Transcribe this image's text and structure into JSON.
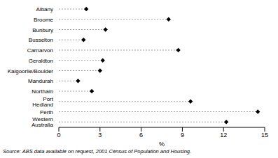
{
  "chart_data": {
    "type": "dot",
    "orientation": "horizontal",
    "categories": [
      "Albany",
      "Broome",
      "Bunbury",
      "Busselton",
      "Carnarvon",
      "Geraldton",
      "Kalgoorlie/Boulder",
      "Mandurah",
      "Northam",
      "Port Hedland",
      "Perth",
      "Western Australia"
    ],
    "values": [
      2.0,
      8.0,
      3.4,
      1.8,
      8.7,
      3.2,
      3.0,
      1.4,
      2.4,
      9.6,
      14.5,
      12.2
    ],
    "color": "#000000",
    "marker": "diamond",
    "line_style": "dashed",
    "xlabel": "%",
    "xlim": [
      0,
      15
    ],
    "xticks": [
      0,
      3,
      6,
      9,
      12,
      15
    ],
    "annotation": "Source: ABS data available on request, 2001 Census of Population and Housing."
  }
}
